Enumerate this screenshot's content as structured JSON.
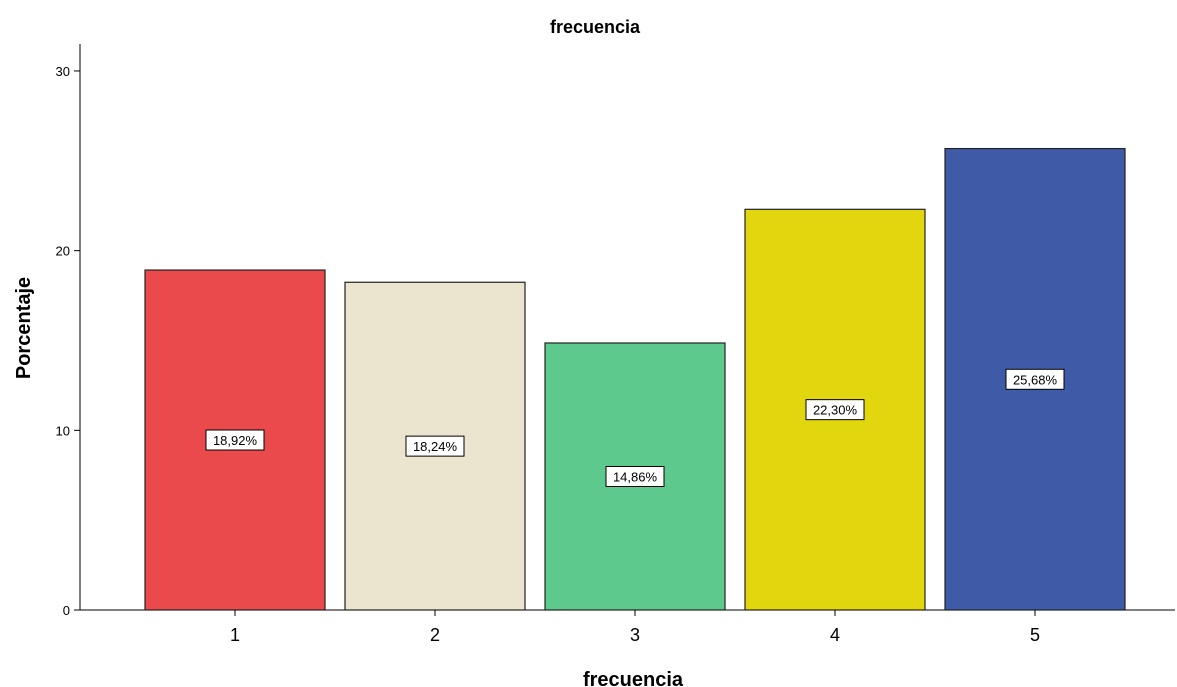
{
  "chart_data": {
    "type": "bar",
    "title": "frecuencia",
    "xlabel": "frecuencia",
    "ylabel": "Porcentaje",
    "categories": [
      "1",
      "2",
      "3",
      "4",
      "5"
    ],
    "values": [
      18.92,
      18.24,
      14.86,
      22.3,
      25.68
    ],
    "data_labels": [
      "18,92%",
      "18,24%",
      "14,86%",
      "22,30%",
      "25,68%"
    ],
    "colors": [
      "#ea4a4b",
      "#ebe4cf",
      "#5ec98c",
      "#e2d60f",
      "#3f5ba8"
    ],
    "ylim": [
      0,
      31.5
    ],
    "yticks": [
      0,
      10,
      20,
      30
    ],
    "ytick_labels": [
      "0",
      "10",
      "20",
      "30"
    ],
    "grid": false,
    "legend": "none"
  }
}
